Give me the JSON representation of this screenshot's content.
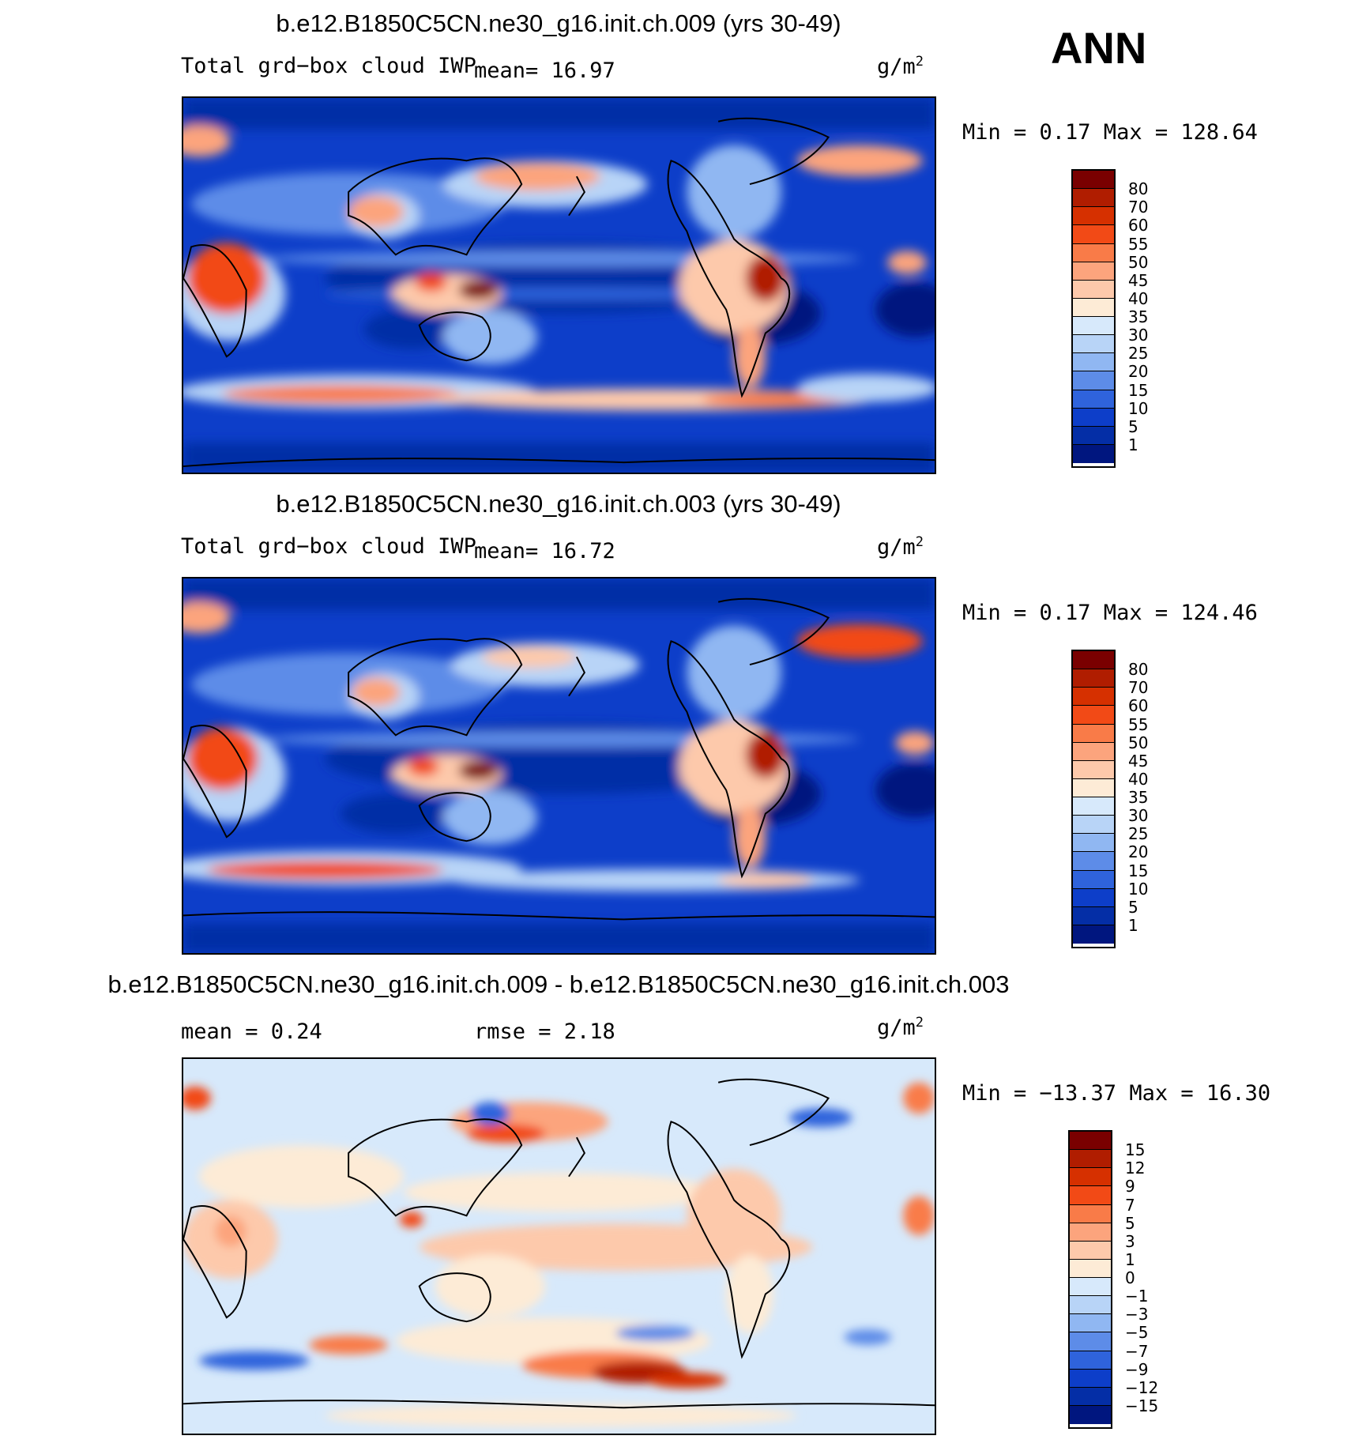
{
  "season": "ANN",
  "colorbar_abs": {
    "labels": [
      "80",
      "70",
      "60",
      "55",
      "50",
      "45",
      "40",
      "35",
      "30",
      "25",
      "20",
      "15",
      "10",
      "5",
      "1"
    ],
    "colors": [
      "#7a0000",
      "#b01d00",
      "#d63000",
      "#f24a16",
      "#f97b48",
      "#fca47d",
      "#fdc9ab",
      "#fdebd6",
      "#d7e9fb",
      "#b8d4f7",
      "#90b7f2",
      "#5d8ce8",
      "#2f63dc",
      "#0d3ec9",
      "#042ea6",
      "#00167f"
    ]
  },
  "colorbar_diff": {
    "labels": [
      "15",
      "12",
      "9",
      "7",
      "5",
      "3",
      "1",
      "0",
      "−1",
      "−3",
      "−5",
      "−7",
      "−9",
      "−12",
      "−15"
    ],
    "colors": [
      "#7a0000",
      "#b01d00",
      "#d63000",
      "#f24a16",
      "#f97b48",
      "#fca47d",
      "#fdc9ab",
      "#fdebd6",
      "#d7e9fb",
      "#b8d4f7",
      "#90b7f2",
      "#5d8ce8",
      "#2f63dc",
      "#0d3ec9",
      "#042ea6",
      "#00167f"
    ]
  },
  "panels": [
    {
      "title": "b.e12.B1850C5CN.ne30_g16.init.ch.009 (yrs 30-49)",
      "left_label": "Total grd−box cloud IWP",
      "stat1": "mean=   16.97",
      "units": "g/m",
      "units_sup": "2",
      "minmax": "Min =    0.17 Max = 128.64"
    },
    {
      "title": "b.e12.B1850C5CN.ne30_g16.init.ch.003 (yrs 30-49)",
      "left_label": "Total grd−box cloud IWP",
      "stat1": "mean=   16.72",
      "units": "g/m",
      "units_sup": "2",
      "minmax": "Min =    0.17 Max = 124.46"
    },
    {
      "title": "b.e12.B1850C5CN.ne30_g16.init.ch.009 - b.e12.B1850C5CN.ne30_g16.init.ch.003",
      "left_label": "mean =    0.24",
      "stat1": "rmse =    2.18",
      "units": "g/m",
      "units_sup": "2",
      "minmax": "Min = −13.37 Max =   16.30"
    }
  ]
}
